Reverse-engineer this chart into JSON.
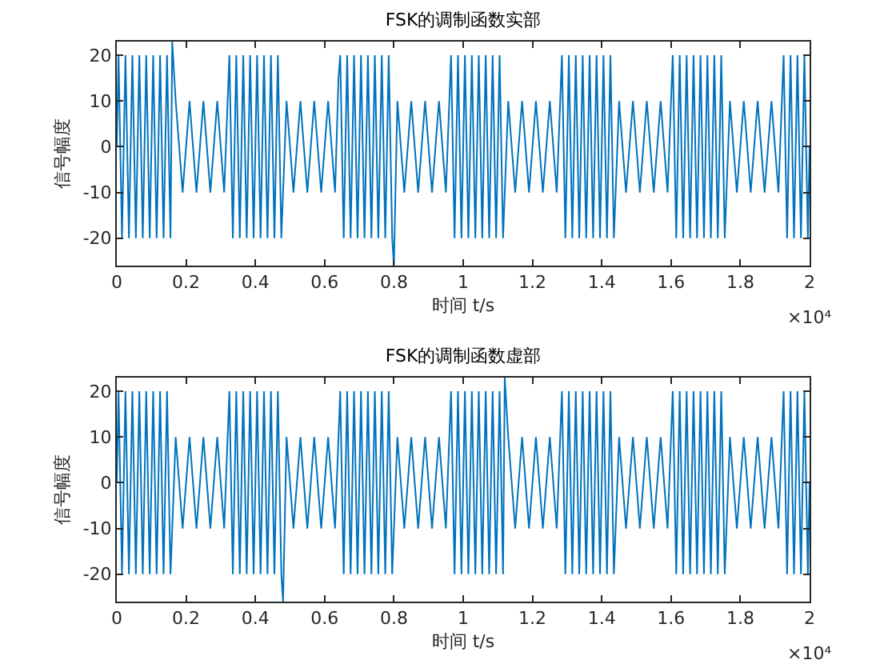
{
  "chart_data": [
    {
      "type": "line",
      "title": "FSK的调制函数实部",
      "xlabel": "时间 t/s",
      "ylabel": "信号幅度",
      "color": "#0072bd",
      "x": [
        0,
        0.005,
        0.015,
        0.025,
        0.035,
        0.045,
        0.055,
        0.065,
        0.075,
        0.085,
        0.095,
        0.105,
        0.115,
        0.125,
        0.135,
        0.145,
        0.155,
        0.16,
        0.17,
        0.19,
        0.21,
        0.23,
        0.25,
        0.27,
        0.29,
        0.31,
        0.325,
        0.335,
        0.345,
        0.355,
        0.365,
        0.375,
        0.385,
        0.395,
        0.405,
        0.415,
        0.425,
        0.435,
        0.445,
        0.455,
        0.465,
        0.475,
        0.49,
        0.51,
        0.53,
        0.55,
        0.57,
        0.59,
        0.61,
        0.63,
        0.64,
        0.645,
        0.655,
        0.665,
        0.675,
        0.685,
        0.695,
        0.705,
        0.715,
        0.725,
        0.735,
        0.745,
        0.755,
        0.765,
        0.775,
        0.785,
        0.795,
        0.8,
        0.81,
        0.83,
        0.85,
        0.87,
        0.89,
        0.91,
        0.93,
        0.95,
        0.965,
        0.975,
        0.985,
        0.995,
        1.005,
        1.015,
        1.025,
        1.035,
        1.045,
        1.055,
        1.065,
        1.075,
        1.085,
        1.095,
        1.105,
        1.115,
        1.13,
        1.15,
        1.17,
        1.19,
        1.21,
        1.23,
        1.25,
        1.27,
        1.285,
        1.295,
        1.305,
        1.315,
        1.325,
        1.335,
        1.345,
        1.355,
        1.365,
        1.375,
        1.385,
        1.395,
        1.405,
        1.415,
        1.425,
        1.435,
        1.45,
        1.47,
        1.49,
        1.51,
        1.53,
        1.55,
        1.57,
        1.59,
        1.605,
        1.615,
        1.625,
        1.635,
        1.645,
        1.655,
        1.665,
        1.675,
        1.685,
        1.695,
        1.705,
        1.715,
        1.725,
        1.735,
        1.745,
        1.755,
        1.77,
        1.79,
        1.81,
        1.83,
        1.85,
        1.87,
        1.89,
        1.91,
        1.925,
        1.935,
        1.945,
        1.955,
        1.965,
        1.975,
        1.985,
        1.995,
        2
      ],
      "values": [
        0,
        20,
        -20,
        20,
        -20,
        20,
        -20,
        20,
        -20,
        20,
        -20,
        20,
        -20,
        20,
        -20,
        20,
        -20,
        23,
        10,
        -10,
        10,
        -10,
        10,
        -10,
        10,
        -10,
        20,
        -20,
        20,
        -20,
        20,
        -20,
        20,
        -20,
        20,
        -20,
        20,
        -20,
        20,
        -20,
        20,
        -20,
        10,
        -10,
        10,
        -10,
        10,
        -10,
        10,
        -10,
        15,
        20,
        -20,
        20,
        -20,
        20,
        -20,
        20,
        -20,
        20,
        -20,
        20,
        -20,
        20,
        -20,
        20,
        -20,
        -26,
        10,
        -10,
        10,
        -10,
        10,
        -10,
        10,
        -10,
        20,
        -20,
        20,
        -20,
        20,
        -20,
        20,
        -20,
        20,
        -20,
        20,
        -20,
        20,
        -20,
        20,
        -20,
        10,
        -10,
        10,
        -10,
        10,
        -10,
        10,
        -10,
        20,
        -20,
        20,
        -20,
        20,
        -20,
        20,
        -20,
        20,
        -20,
        20,
        -20,
        20,
        -20,
        20,
        -20,
        10,
        -10,
        10,
        -10,
        10,
        -10,
        10,
        -10,
        20,
        -20,
        20,
        -20,
        20,
        -20,
        20,
        -20,
        20,
        -20,
        20,
        -20,
        20,
        -20,
        20,
        -20,
        10,
        -10,
        10,
        -10,
        10,
        -10,
        10,
        -10,
        20,
        -20,
        20,
        -20,
        20,
        -20,
        20,
        -20,
        0
      ],
      "xlim": [
        0,
        2
      ],
      "xticks": [
        0,
        0.2,
        0.4,
        0.6,
        0.8,
        1,
        1.2,
        1.4,
        1.6,
        1.8,
        2
      ],
      "ylim": [
        -26,
        23
      ],
      "yticks": [
        -20,
        -10,
        0,
        10,
        20
      ],
      "annotations": [
        "×10⁴"
      ]
    },
    {
      "type": "line",
      "title": "FSK的调制函数虚部",
      "xlabel": "时间 t/s",
      "ylabel": "信号幅度",
      "color": "#0072bd",
      "x": [
        0,
        0.005,
        0.015,
        0.025,
        0.035,
        0.045,
        0.055,
        0.065,
        0.075,
        0.085,
        0.095,
        0.105,
        0.115,
        0.125,
        0.135,
        0.145,
        0.155,
        0.17,
        0.19,
        0.21,
        0.23,
        0.25,
        0.27,
        0.29,
        0.31,
        0.325,
        0.335,
        0.345,
        0.355,
        0.365,
        0.375,
        0.385,
        0.395,
        0.405,
        0.415,
        0.425,
        0.435,
        0.445,
        0.455,
        0.465,
        0.475,
        0.48,
        0.49,
        0.51,
        0.53,
        0.55,
        0.57,
        0.59,
        0.61,
        0.63,
        0.645,
        0.655,
        0.665,
        0.675,
        0.685,
        0.695,
        0.705,
        0.715,
        0.725,
        0.735,
        0.745,
        0.755,
        0.765,
        0.775,
        0.785,
        0.795,
        0.81,
        0.83,
        0.85,
        0.87,
        0.89,
        0.91,
        0.93,
        0.95,
        0.965,
        0.975,
        0.985,
        0.995,
        1.005,
        1.015,
        1.025,
        1.035,
        1.045,
        1.055,
        1.065,
        1.075,
        1.085,
        1.095,
        1.105,
        1.115,
        1.12,
        1.13,
        1.15,
        1.17,
        1.19,
        1.21,
        1.23,
        1.25,
        1.27,
        1.285,
        1.295,
        1.305,
        1.315,
        1.325,
        1.335,
        1.345,
        1.355,
        1.365,
        1.375,
        1.385,
        1.395,
        1.405,
        1.415,
        1.425,
        1.435,
        1.45,
        1.47,
        1.49,
        1.51,
        1.53,
        1.55,
        1.57,
        1.59,
        1.605,
        1.615,
        1.625,
        1.635,
        1.645,
        1.655,
        1.665,
        1.675,
        1.685,
        1.695,
        1.705,
        1.715,
        1.725,
        1.735,
        1.745,
        1.755,
        1.77,
        1.79,
        1.81,
        1.83,
        1.85,
        1.87,
        1.89,
        1.91,
        1.925,
        1.935,
        1.945,
        1.955,
        1.965,
        1.975,
        1.985,
        1.995,
        2
      ],
      "values": [
        0,
        20,
        -20,
        20,
        -20,
        20,
        -20,
        20,
        -20,
        20,
        -20,
        20,
        -20,
        20,
        -20,
        20,
        -20,
        10,
        -10,
        10,
        -10,
        10,
        -10,
        10,
        -10,
        20,
        -20,
        20,
        -20,
        20,
        -20,
        20,
        -20,
        20,
        -20,
        20,
        -20,
        20,
        -20,
        20,
        -20,
        -26,
        10,
        -10,
        10,
        -10,
        10,
        -10,
        10,
        -10,
        20,
        -20,
        20,
        -20,
        20,
        -20,
        20,
        -20,
        20,
        -20,
        20,
        -20,
        20,
        -20,
        20,
        -20,
        10,
        -10,
        10,
        -10,
        10,
        -10,
        10,
        -10,
        20,
        -20,
        20,
        -20,
        20,
        -20,
        20,
        -20,
        20,
        -20,
        20,
        -20,
        20,
        -20,
        20,
        -20,
        23,
        10,
        -10,
        10,
        -10,
        10,
        -10,
        10,
        -10,
        20,
        -20,
        20,
        -20,
        20,
        -20,
        20,
        -20,
        20,
        -20,
        20,
        -20,
        20,
        -20,
        20,
        -20,
        10,
        -10,
        10,
        -10,
        10,
        -10,
        10,
        -10,
        20,
        -20,
        20,
        -20,
        20,
        -20,
        20,
        -20,
        20,
        -20,
        20,
        -20,
        20,
        -20,
        20,
        -20,
        10,
        -10,
        10,
        -10,
        10,
        -10,
        10,
        -10,
        20,
        -20,
        20,
        -20,
        20,
        -20,
        20,
        -20,
        0
      ],
      "xlim": [
        0,
        2
      ],
      "xticks": [
        0,
        0.2,
        0.4,
        0.6,
        0.8,
        1,
        1.2,
        1.4,
        1.6,
        1.8,
        2
      ],
      "ylim": [
        -26,
        23
      ],
      "yticks": [
        -20,
        -10,
        0,
        10,
        20
      ],
      "annotations": [
        "×10⁴"
      ]
    }
  ]
}
